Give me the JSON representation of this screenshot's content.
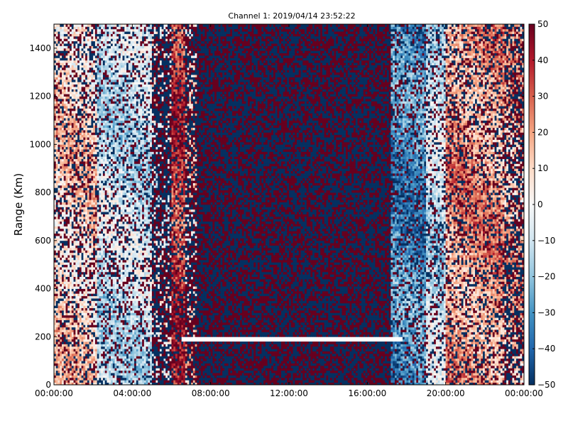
{
  "chart_data": {
    "type": "heatmap",
    "title": "Channel 1: 2019/04/14 23:52:22",
    "xlabel": "",
    "ylabel": "Range (Km)",
    "x_ticks": [
      "00:00:00",
      "04:00:00",
      "08:00:00",
      "12:00:00",
      "16:00:00",
      "20:00:00",
      "00:00:00"
    ],
    "x_range_hours": [
      0,
      24
    ],
    "y_ticks": [
      0,
      200,
      400,
      600,
      800,
      1000,
      1200,
      1400
    ],
    "ylim": [
      0,
      1500
    ],
    "colorbar": {
      "ticks": [
        -50,
        -40,
        -30,
        -20,
        -10,
        0,
        10,
        20,
        30,
        40,
        50
      ],
      "range": [
        -50,
        50
      ],
      "colormap": "RdBu_r",
      "low_color": "#053061",
      "mid_color": "#f7f7f7",
      "high_color": "#67001f"
    },
    "regions": [
      {
        "x_start_hours": 0.0,
        "x_end_hours": 2.2,
        "description": "weak positive velocities with scattered noise",
        "mean": 10,
        "noise": 0.35
      },
      {
        "x_start_hours": 2.2,
        "x_end_hours": 5.0,
        "description": "near zero / weak negative",
        "mean": -10,
        "noise": 0.3
      },
      {
        "x_start_hours": 5.0,
        "x_end_hours": 6.0,
        "description": "noisy band",
        "mean": 0,
        "noise": 0.8
      },
      {
        "x_start_hours": 6.0,
        "x_end_hours": 6.7,
        "description": "strong positive band",
        "mean": 35,
        "noise": 0.3
      },
      {
        "x_start_hours": 6.7,
        "x_end_hours": 7.3,
        "description": "noisy transition",
        "mean": 10,
        "noise": 0.75
      },
      {
        "x_start_hours": 7.3,
        "x_end_hours": 17.2,
        "description": "random noise (no signal)",
        "mean": 0,
        "noise": 1.0
      },
      {
        "x_start_hours": 17.2,
        "x_end_hours": 19.0,
        "description": "negative velocities",
        "mean": -30,
        "noise": 0.3
      },
      {
        "x_start_hours": 19.0,
        "x_end_hours": 20.0,
        "description": "weak negative",
        "mean": -10,
        "noise": 0.3
      },
      {
        "x_start_hours": 20.0,
        "x_end_hours": 23.0,
        "description": "positive velocities",
        "mean": 20,
        "noise": 0.35
      },
      {
        "x_start_hours": 23.0,
        "x_end_hours": 24.0,
        "description": "noisy positive",
        "mean": 15,
        "noise": 0.6
      }
    ],
    "gap": {
      "y_km": 190,
      "x_start_hours": 6.5,
      "x_end_hours": 17.8
    }
  }
}
